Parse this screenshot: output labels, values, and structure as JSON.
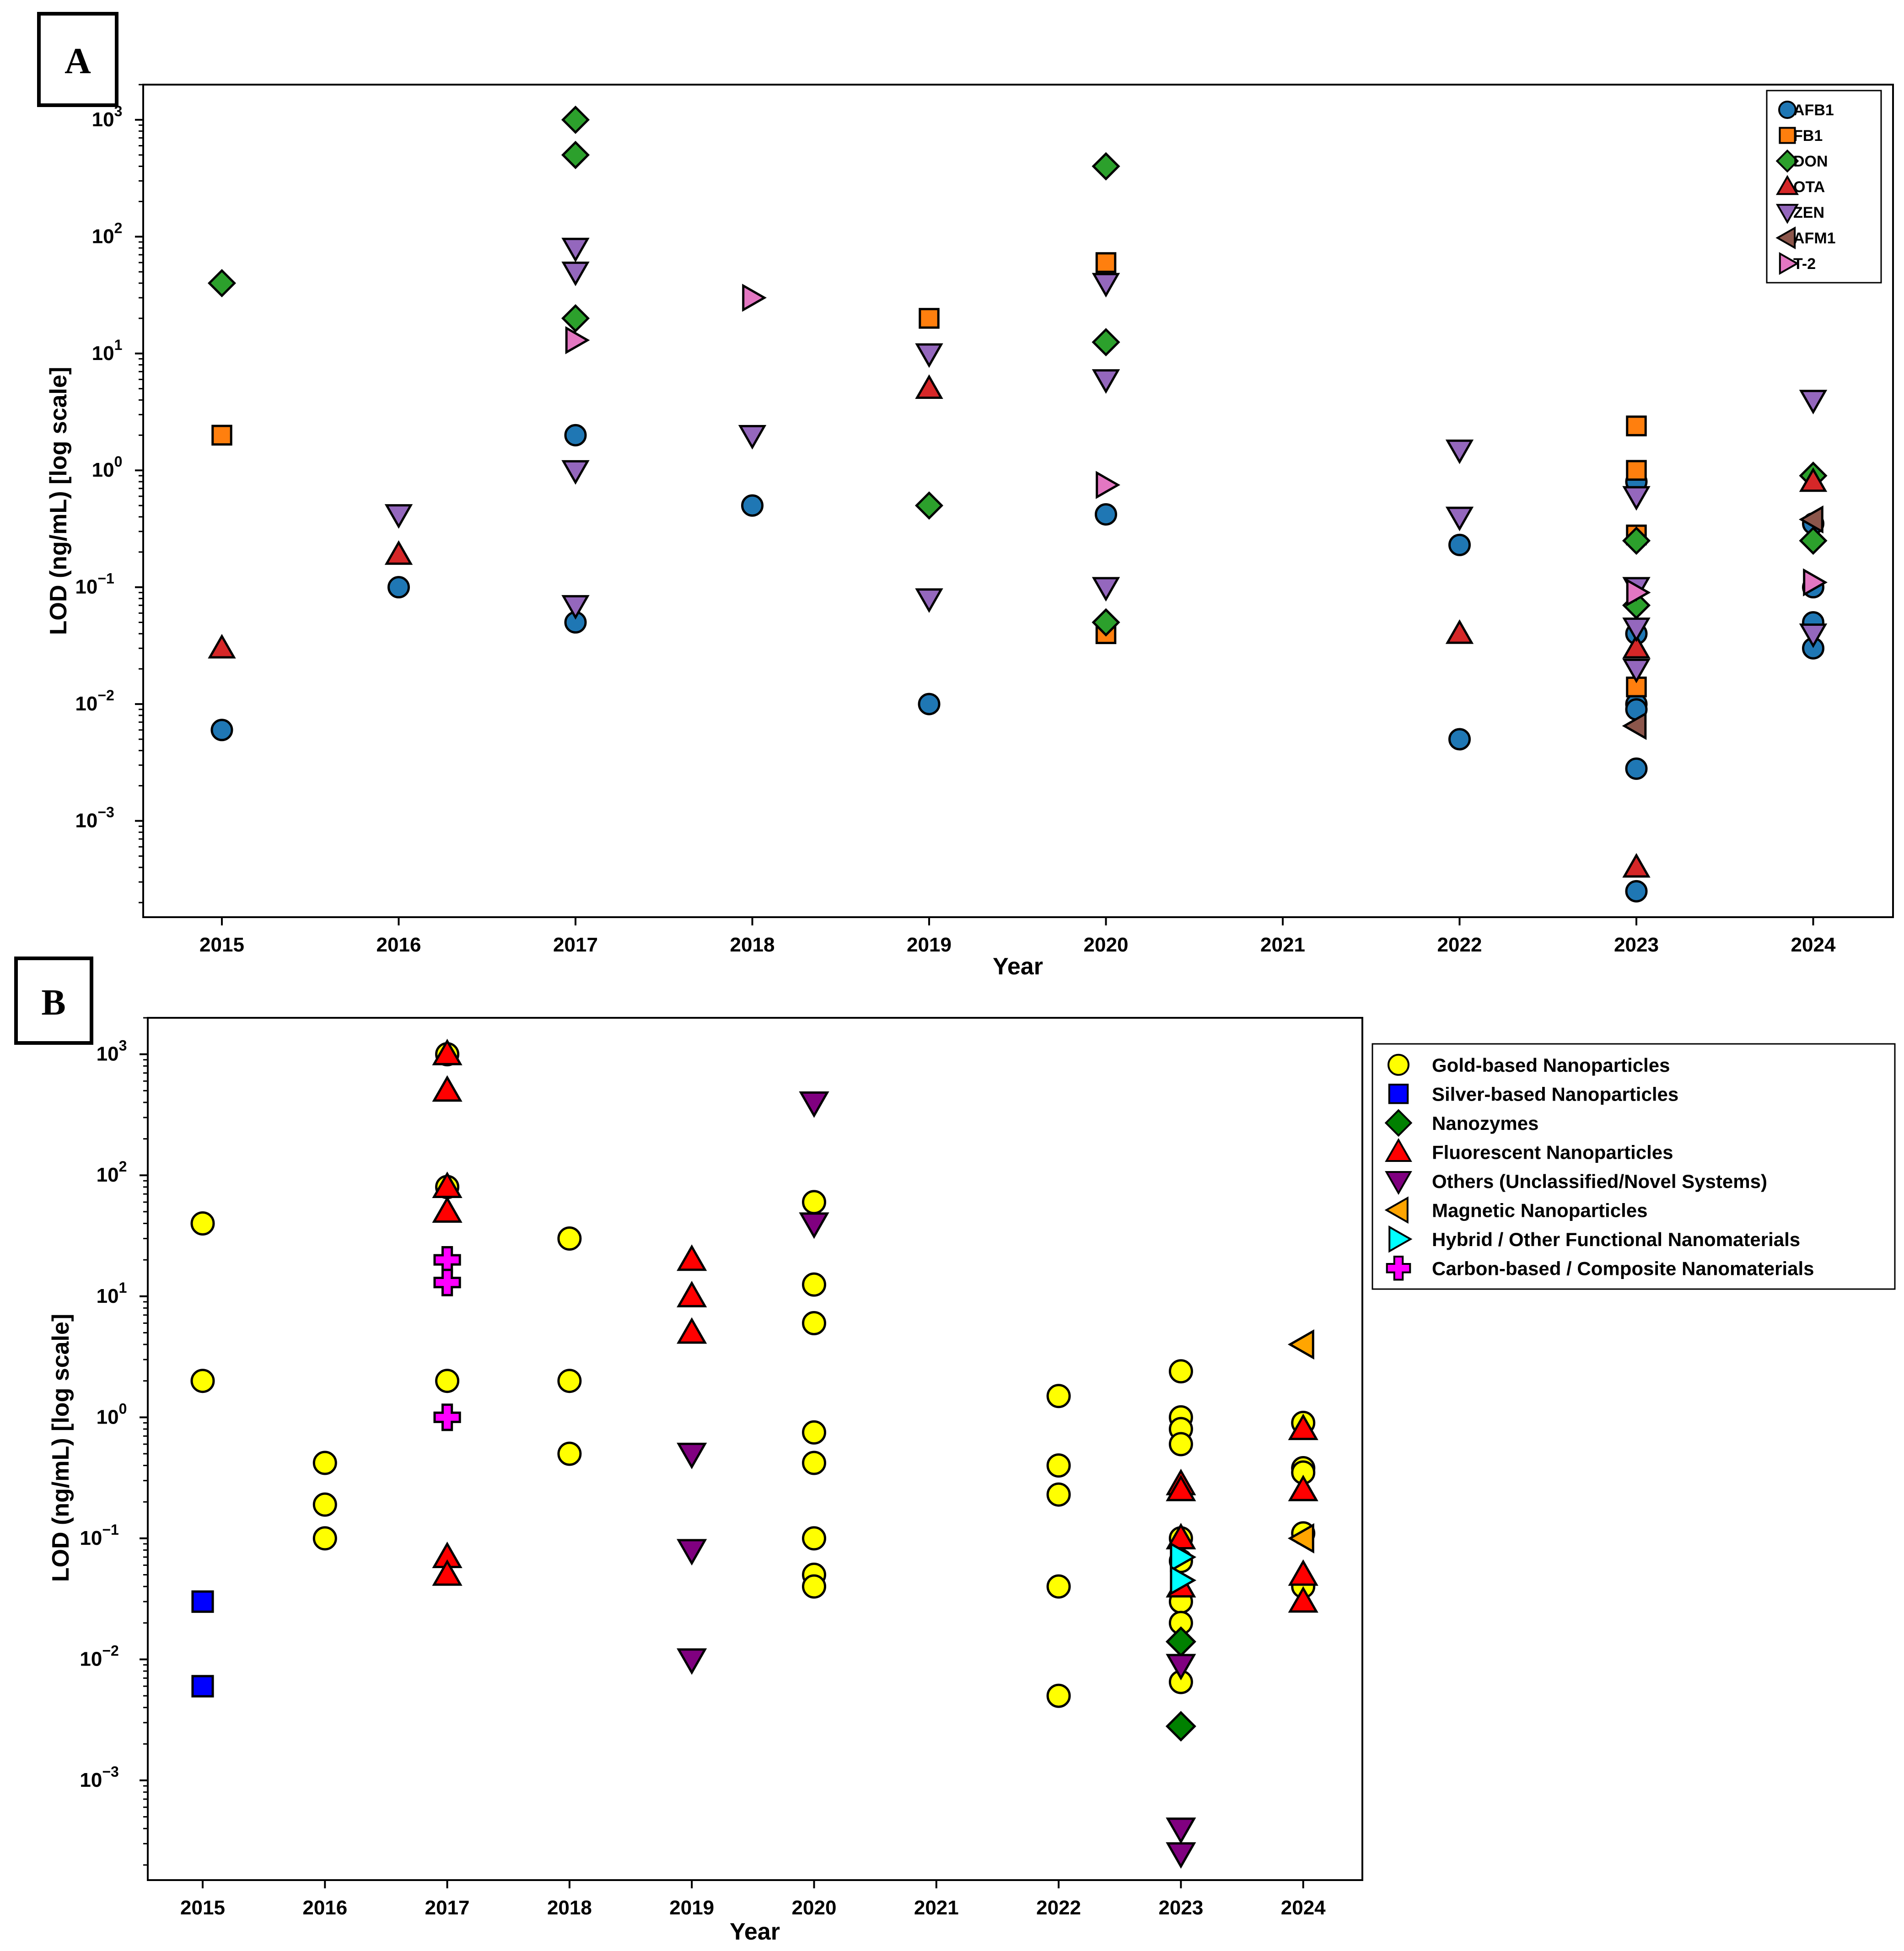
{
  "chart_data": [
    {
      "panel": "A",
      "type": "scatter",
      "xlabel": "Year",
      "ylabel": "LOD (ng/mL) [log scale]",
      "yscale": "log",
      "ylim": [
        0.00015,
        2000
      ],
      "x_ticks": [
        "2015",
        "2016",
        "2017",
        "2018",
        "2019",
        "2020",
        "2021",
        "2022",
        "2023",
        "2024"
      ],
      "y_ticks": [
        0.001,
        0.01,
        0.1,
        1,
        10,
        100,
        1000
      ],
      "y_tick_labels": [
        "10",
        "10",
        "10",
        "10",
        "10",
        "10",
        "10"
      ],
      "y_tick_exponents": [
        "−3",
        "−2",
        "−1",
        "0",
        "1",
        "2",
        "3"
      ],
      "legend_position": "top-right",
      "series": [
        {
          "name": "AFB1",
          "marker": "circle",
          "color": "#1f77b4",
          "points": [
            [
              2015,
              0.006
            ],
            [
              2016,
              0.1
            ],
            [
              2017,
              2
            ],
            [
              2017,
              0.05
            ],
            [
              2018,
              0.5
            ],
            [
              2019,
              0.01
            ],
            [
              2020,
              0.42
            ],
            [
              2022,
              0.23
            ],
            [
              2022,
              0.005
            ],
            [
              2023,
              0.8
            ],
            [
              2023,
              0.04
            ],
            [
              2023,
              0.01
            ],
            [
              2023,
              0.009
            ],
            [
              2023,
              0.0028
            ],
            [
              2023,
              0.00025
            ],
            [
              2024,
              0.35
            ],
            [
              2024,
              0.1
            ],
            [
              2024,
              0.05
            ],
            [
              2024,
              0.03
            ]
          ]
        },
        {
          "name": "FB1",
          "marker": "square",
          "color": "#ff7f0e",
          "points": [
            [
              2015,
              2
            ],
            [
              2019,
              20
            ],
            [
              2020,
              60
            ],
            [
              2020,
              0.04
            ],
            [
              2023,
              2.4
            ],
            [
              2023,
              1
            ],
            [
              2023,
              0.28
            ],
            [
              2023,
              0.014
            ]
          ]
        },
        {
          "name": "DON",
          "marker": "diamond",
          "color": "#2ca02c",
          "points": [
            [
              2015,
              40
            ],
            [
              2017,
              1000
            ],
            [
              2017,
              500
            ],
            [
              2017,
              20
            ],
            [
              2019,
              0.5
            ],
            [
              2020,
              400
            ],
            [
              2020,
              12.5
            ],
            [
              2020,
              0.05
            ],
            [
              2023,
              0.25
            ],
            [
              2023,
              0.07
            ],
            [
              2024,
              0.9
            ],
            [
              2024,
              0.25
            ]
          ]
        },
        {
          "name": "OTA",
          "marker": "triangle-up",
          "color": "#d62728",
          "points": [
            [
              2015,
              0.03
            ],
            [
              2016,
              0.19
            ],
            [
              2019,
              5
            ],
            [
              2022,
              0.04
            ],
            [
              2023,
              0.03
            ],
            [
              2023,
              0.0004
            ],
            [
              2024,
              0.8
            ]
          ]
        },
        {
          "name": "ZEN",
          "marker": "triangle-down",
          "color": "#9467bd",
          "points": [
            [
              2016,
              0.42
            ],
            [
              2017,
              80
            ],
            [
              2017,
              50
            ],
            [
              2017,
              1
            ],
            [
              2017,
              0.07
            ],
            [
              2018,
              2
            ],
            [
              2019,
              10
            ],
            [
              2019,
              0.08
            ],
            [
              2020,
              40
            ],
            [
              2020,
              6
            ],
            [
              2020,
              0.1
            ],
            [
              2022,
              1.5
            ],
            [
              2022,
              0.4
            ],
            [
              2023,
              0.6
            ],
            [
              2023,
              0.1
            ],
            [
              2023,
              0.045
            ],
            [
              2023,
              0.02
            ],
            [
              2024,
              4
            ],
            [
              2024,
              0.04
            ]
          ]
        },
        {
          "name": "AFM1",
          "marker": "triangle-left",
          "color": "#8c564b",
          "points": [
            [
              2023,
              0.0065
            ],
            [
              2024,
              0.38
            ]
          ]
        },
        {
          "name": "T-2",
          "marker": "triangle-right",
          "color": "#e377c2",
          "points": [
            [
              2017,
              13
            ],
            [
              2018,
              30
            ],
            [
              2020,
              0.75
            ],
            [
              2023,
              0.09
            ],
            [
              2024,
              0.11
            ]
          ]
        }
      ]
    },
    {
      "panel": "B",
      "type": "scatter",
      "xlabel": "Year",
      "ylabel": "LOD (ng/mL) [log scale]",
      "yscale": "log",
      "ylim": [
        0.00015,
        2000
      ],
      "x_ticks": [
        "2015",
        "2016",
        "2017",
        "2018",
        "2019",
        "2020",
        "2021",
        "2022",
        "2023",
        "2024"
      ],
      "y_ticks": [
        0.001,
        0.01,
        0.1,
        1,
        10,
        100,
        1000
      ],
      "y_tick_labels": [
        "10",
        "10",
        "10",
        "10",
        "10",
        "10",
        "10"
      ],
      "y_tick_exponents": [
        "−3",
        "−2",
        "−1",
        "0",
        "1",
        "2",
        "3"
      ],
      "legend_position": "outside right",
      "series": [
        {
          "name": "Gold-based Nanoparticles",
          "marker": "circle",
          "color": "#ffff00",
          "points": [
            [
              2015,
              40
            ],
            [
              2015,
              2
            ],
            [
              2016,
              0.42
            ],
            [
              2016,
              0.19
            ],
            [
              2016,
              0.1
            ],
            [
              2017,
              1000
            ],
            [
              2017,
              80
            ],
            [
              2017,
              2
            ],
            [
              2018,
              30
            ],
            [
              2018,
              2
            ],
            [
              2018,
              0.5
            ],
            [
              2020,
              60
            ],
            [
              2020,
              12.5
            ],
            [
              2020,
              6
            ],
            [
              2020,
              0.75
            ],
            [
              2020,
              0.42
            ],
            [
              2020,
              0.1
            ],
            [
              2020,
              0.05
            ],
            [
              2020,
              0.04
            ],
            [
              2022,
              1.5
            ],
            [
              2022,
              0.4
            ],
            [
              2022,
              0.23
            ],
            [
              2022,
              0.04
            ],
            [
              2022,
              0.005
            ],
            [
              2023,
              2.4
            ],
            [
              2023,
              1
            ],
            [
              2023,
              0.8
            ],
            [
              2023,
              0.6
            ],
            [
              2023,
              0.1
            ],
            [
              2023,
              0.065
            ],
            [
              2023,
              0.03
            ],
            [
              2023,
              0.02
            ],
            [
              2023,
              0.0065
            ],
            [
              2024,
              0.9
            ],
            [
              2024,
              0.38
            ],
            [
              2024,
              0.35
            ],
            [
              2024,
              0.11
            ],
            [
              2024,
              0.04
            ]
          ]
        },
        {
          "name": "Silver-based Nanoparticles",
          "marker": "square",
          "color": "#0000ff",
          "points": [
            [
              2015,
              0.03
            ],
            [
              2015,
              0.006
            ]
          ]
        },
        {
          "name": "Nanozymes",
          "marker": "diamond",
          "color": "#008000",
          "points": [
            [
              2023,
              0.014
            ],
            [
              2023,
              0.0028
            ]
          ]
        },
        {
          "name": "Fluorescent Nanoparticles",
          "marker": "triangle-up",
          "color": "#ff0000",
          "points": [
            [
              2017,
              1000
            ],
            [
              2017,
              500
            ],
            [
              2017,
              80
            ],
            [
              2017,
              50
            ],
            [
              2017,
              0.07
            ],
            [
              2017,
              0.05
            ],
            [
              2019,
              20
            ],
            [
              2019,
              10
            ],
            [
              2019,
              5
            ],
            [
              2023,
              0.28
            ],
            [
              2023,
              0.25
            ],
            [
              2023,
              0.1
            ],
            [
              2023,
              0.04
            ],
            [
              2024,
              0.8
            ],
            [
              2024,
              0.25
            ],
            [
              2024,
              0.05
            ],
            [
              2024,
              0.03
            ]
          ]
        },
        {
          "name": "Others (Unclassified/Novel Systems)",
          "marker": "triangle-down",
          "color": "#800080",
          "points": [
            [
              2019,
              0.5
            ],
            [
              2019,
              0.08
            ],
            [
              2019,
              0.01
            ],
            [
              2020,
              400
            ],
            [
              2020,
              40
            ],
            [
              2023,
              0.009
            ],
            [
              2023,
              0.0004
            ],
            [
              2023,
              0.00025
            ]
          ]
        },
        {
          "name": "Magnetic Nanoparticles",
          "marker": "triangle-left",
          "color": "#ffa500",
          "points": [
            [
              2024,
              4
            ],
            [
              2024,
              0.1
            ]
          ]
        },
        {
          "name": "Hybrid / Other Functional Nanomaterials",
          "marker": "triangle-right",
          "color": "#00ffff",
          "points": [
            [
              2023,
              0.07
            ],
            [
              2023,
              0.045
            ]
          ]
        },
        {
          "name": "Carbon-based / Composite Nanomaterials",
          "marker": "plus",
          "color": "#ff00ff",
          "points": [
            [
              2017,
              20
            ],
            [
              2017,
              13
            ],
            [
              2017,
              1
            ]
          ]
        }
      ]
    }
  ]
}
